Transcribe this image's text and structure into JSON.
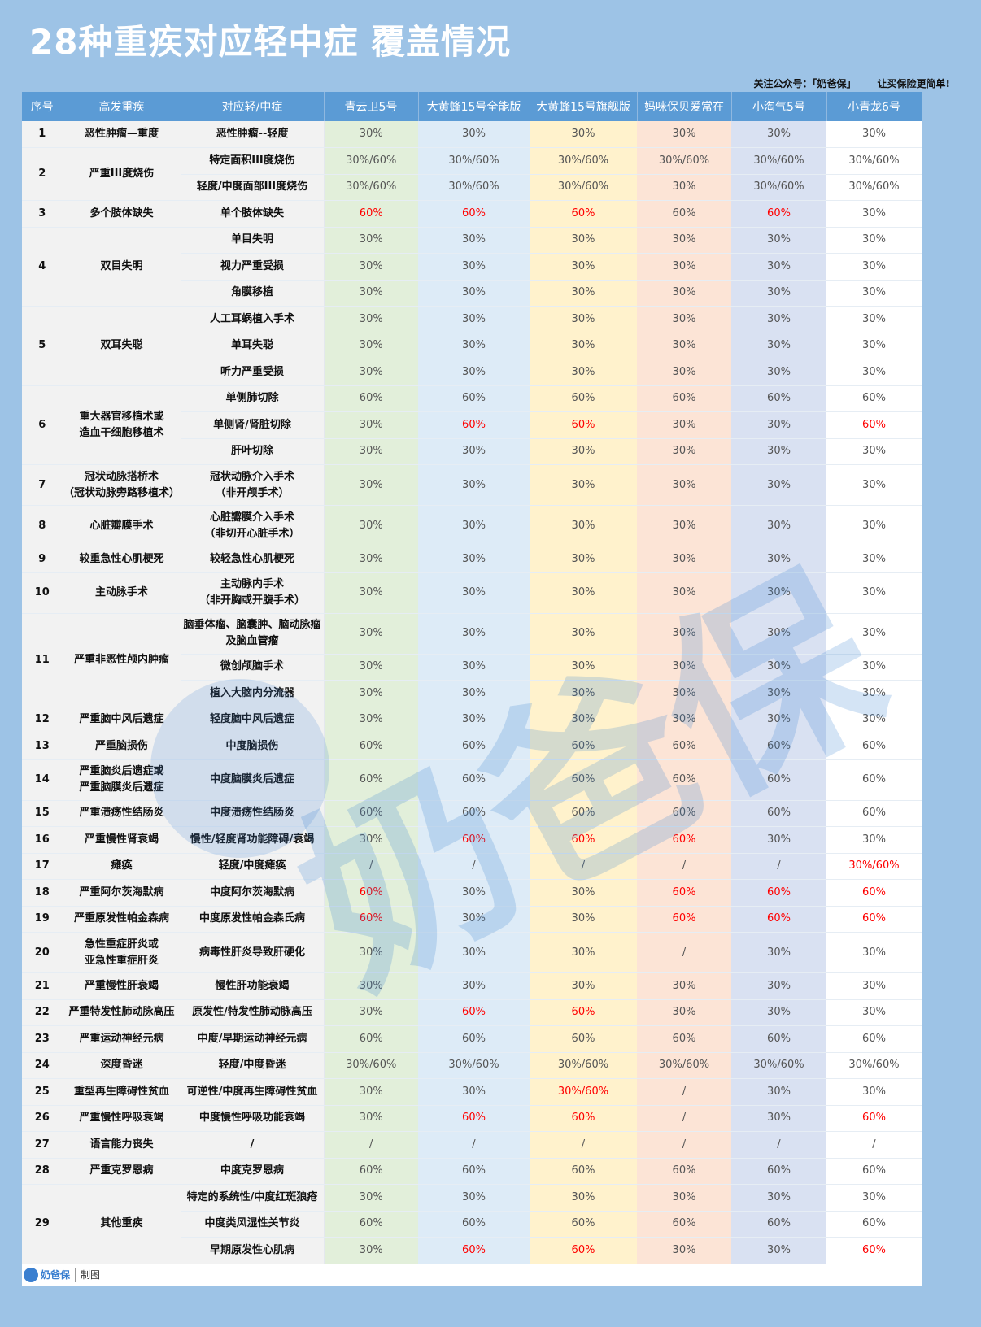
{
  "title": "28种重疾对应轻中症 覆盖情况",
  "slogan": {
    "follow": "关注公众号：「奶爸保」",
    "tagline": "让买保险更简单!"
  },
  "headers": [
    "序号",
    "高发重疾",
    "对应轻/中症",
    "青云卫5号",
    "大黄蜂15号全能版",
    "大黄蜂15号旗舰版",
    "妈咪保贝爱常在",
    "小淘气5号",
    "小青龙6号"
  ],
  "column_colors": [
    "#e2efda",
    "#ddebf7",
    "#fff2cc",
    "#fce4d6",
    "#d9e1f2",
    "#ffffff"
  ],
  "highlight_color": "#ff0000",
  "groups": [
    {
      "no": "1",
      "disease": "恶性肿瘤—重度",
      "subs": [
        {
          "mild": "恶性肿瘤--轻度",
          "values": [
            "30%",
            "30%",
            "30%",
            "30%",
            "30%",
            "30%"
          ],
          "red": []
        }
      ]
    },
    {
      "no": "2",
      "disease": "严重III度烧伤",
      "subs": [
        {
          "mild": "特定面积III度烧伤",
          "values": [
            "30%/60%",
            "30%/60%",
            "30%/60%",
            "30%/60%",
            "30%/60%",
            "30%/60%"
          ],
          "red": []
        },
        {
          "mild": "轻度/中度面部III度烧伤",
          "values": [
            "30%/60%",
            "30%/60%",
            "30%/60%",
            "30%",
            "30%/60%",
            "30%/60%"
          ],
          "red": []
        }
      ]
    },
    {
      "no": "3",
      "disease": "多个肢体缺失",
      "subs": [
        {
          "mild": "单个肢体缺失",
          "values": [
            "60%",
            "60%",
            "60%",
            "60%",
            "60%",
            "30%"
          ],
          "red": [
            0,
            1,
            2,
            4
          ]
        }
      ]
    },
    {
      "no": "4",
      "disease": "双目失明",
      "subs": [
        {
          "mild": "单目失明",
          "values": [
            "30%",
            "30%",
            "30%",
            "30%",
            "30%",
            "30%"
          ],
          "red": []
        },
        {
          "mild": "视力严重受损",
          "values": [
            "30%",
            "30%",
            "30%",
            "30%",
            "30%",
            "30%"
          ],
          "red": []
        },
        {
          "mild": "角膜移植",
          "values": [
            "30%",
            "30%",
            "30%",
            "30%",
            "30%",
            "30%"
          ],
          "red": []
        }
      ]
    },
    {
      "no": "5",
      "disease": "双耳失聪",
      "subs": [
        {
          "mild": "人工耳蜗植入手术",
          "values": [
            "30%",
            "30%",
            "30%",
            "30%",
            "30%",
            "30%"
          ],
          "red": []
        },
        {
          "mild": "单耳失聪",
          "values": [
            "30%",
            "30%",
            "30%",
            "30%",
            "30%",
            "30%"
          ],
          "red": []
        },
        {
          "mild": "听力严重受损",
          "values": [
            "30%",
            "30%",
            "30%",
            "30%",
            "30%",
            "30%"
          ],
          "red": []
        }
      ]
    },
    {
      "no": "6",
      "disease": "重大器官移植术或\n造血干细胞移植术",
      "subs": [
        {
          "mild": "单侧肺切除",
          "values": [
            "60%",
            "60%",
            "60%",
            "60%",
            "60%",
            "60%"
          ],
          "red": []
        },
        {
          "mild": "单侧肾/肾脏切除",
          "values": [
            "30%",
            "60%",
            "60%",
            "30%",
            "30%",
            "60%"
          ],
          "red": [
            1,
            2,
            5
          ]
        },
        {
          "mild": "肝叶切除",
          "values": [
            "30%",
            "30%",
            "30%",
            "30%",
            "30%",
            "30%"
          ],
          "red": []
        }
      ]
    },
    {
      "no": "7",
      "disease": "冠状动脉搭桥术\n（冠状动脉旁路移植术）",
      "subs": [
        {
          "mild": "冠状动脉介入手术\n（非开颅手术）",
          "values": [
            "30%",
            "30%",
            "30%",
            "30%",
            "30%",
            "30%"
          ],
          "red": []
        }
      ]
    },
    {
      "no": "8",
      "disease": "心脏瓣膜手术",
      "subs": [
        {
          "mild": "心脏瓣膜介入手术\n（非切开心脏手术）",
          "values": [
            "30%",
            "30%",
            "30%",
            "30%",
            "30%",
            "30%"
          ],
          "red": []
        }
      ]
    },
    {
      "no": "9",
      "disease": "较重急性心肌梗死",
      "subs": [
        {
          "mild": "较轻急性心肌梗死",
          "values": [
            "30%",
            "30%",
            "30%",
            "30%",
            "30%",
            "30%"
          ],
          "red": []
        }
      ]
    },
    {
      "no": "10",
      "disease": "主动脉手术",
      "subs": [
        {
          "mild": "主动脉内手术\n（非开胸或开腹手术）",
          "values": [
            "30%",
            "30%",
            "30%",
            "30%",
            "30%",
            "30%"
          ],
          "red": []
        }
      ]
    },
    {
      "no": "11",
      "disease": "严重非恶性颅内肿瘤",
      "subs": [
        {
          "mild": "脑垂体瘤、脑囊肿、脑动脉瘤\n及脑血管瘤",
          "values": [
            "30%",
            "30%",
            "30%",
            "30%",
            "30%",
            "30%"
          ],
          "red": []
        },
        {
          "mild": "微创颅脑手术",
          "values": [
            "30%",
            "30%",
            "30%",
            "30%",
            "30%",
            "30%"
          ],
          "red": []
        },
        {
          "mild": "植入大脑内分流器",
          "values": [
            "30%",
            "30%",
            "30%",
            "30%",
            "30%",
            "30%"
          ],
          "red": []
        }
      ]
    },
    {
      "no": "12",
      "disease": "严重脑中风后遗症",
      "subs": [
        {
          "mild": "轻度脑中风后遗症",
          "values": [
            "30%",
            "30%",
            "30%",
            "30%",
            "30%",
            "30%"
          ],
          "red": []
        }
      ]
    },
    {
      "no": "13",
      "disease": "严重脑损伤",
      "subs": [
        {
          "mild": "中度脑损伤",
          "values": [
            "60%",
            "60%",
            "60%",
            "60%",
            "60%",
            "60%"
          ],
          "red": []
        }
      ]
    },
    {
      "no": "14",
      "disease": "严重脑炎后遗症或\n严重脑膜炎后遗症",
      "subs": [
        {
          "mild": "中度脑膜炎后遗症",
          "values": [
            "60%",
            "60%",
            "60%",
            "60%",
            "60%",
            "60%"
          ],
          "red": []
        }
      ]
    },
    {
      "no": "15",
      "disease": "严重溃疡性结肠炎",
      "subs": [
        {
          "mild": "中度溃疡性结肠炎",
          "values": [
            "60%",
            "60%",
            "60%",
            "60%",
            "60%",
            "60%"
          ],
          "red": []
        }
      ]
    },
    {
      "no": "16",
      "disease": "严重慢性肾衰竭",
      "subs": [
        {
          "mild": "慢性/轻度肾功能障碍/衰竭",
          "values": [
            "30%",
            "60%",
            "60%",
            "60%",
            "30%",
            "30%"
          ],
          "red": [
            1,
            2,
            3
          ]
        }
      ]
    },
    {
      "no": "17",
      "disease": "瘫痪",
      "subs": [
        {
          "mild": "轻度/中度瘫痪",
          "values": [
            "/",
            "/",
            "/",
            "/",
            "/",
            "30%/60%"
          ],
          "red": [
            5
          ]
        }
      ]
    },
    {
      "no": "18",
      "disease": "严重阿尔茨海默病",
      "subs": [
        {
          "mild": "中度阿尔茨海默病",
          "values": [
            "60%",
            "30%",
            "30%",
            "60%",
            "60%",
            "60%"
          ],
          "red": [
            0,
            3,
            4,
            5
          ]
        }
      ]
    },
    {
      "no": "19",
      "disease": "严重原发性帕金森病",
      "subs": [
        {
          "mild": "中度原发性帕金森氏病",
          "values": [
            "60%",
            "30%",
            "30%",
            "60%",
            "60%",
            "60%"
          ],
          "red": [
            0,
            3,
            4,
            5
          ]
        }
      ]
    },
    {
      "no": "20",
      "disease": "急性重症肝炎或\n亚急性重症肝炎",
      "subs": [
        {
          "mild": "病毒性肝炎导致肝硬化",
          "values": [
            "30%",
            "30%",
            "30%",
            "/",
            "30%",
            "30%"
          ],
          "red": []
        }
      ]
    },
    {
      "no": "21",
      "disease": "严重慢性肝衰竭",
      "subs": [
        {
          "mild": "慢性肝功能衰竭",
          "values": [
            "30%",
            "30%",
            "30%",
            "30%",
            "30%",
            "30%"
          ],
          "red": []
        }
      ]
    },
    {
      "no": "22",
      "disease": "严重特发性肺动脉高压",
      "subs": [
        {
          "mild": "原发性/特发性肺动脉高压",
          "values": [
            "30%",
            "60%",
            "60%",
            "30%",
            "30%",
            "30%"
          ],
          "red": [
            1,
            2
          ]
        }
      ]
    },
    {
      "no": "23",
      "disease": "严重运动神经元病",
      "subs": [
        {
          "mild": "中度/早期运动神经元病",
          "values": [
            "60%",
            "60%",
            "60%",
            "60%",
            "60%",
            "60%"
          ],
          "red": []
        }
      ]
    },
    {
      "no": "24",
      "disease": "深度昏迷",
      "subs": [
        {
          "mild": "轻度/中度昏迷",
          "values": [
            "30%/60%",
            "30%/60%",
            "30%/60%",
            "30%/60%",
            "30%/60%",
            "30%/60%"
          ],
          "red": []
        }
      ]
    },
    {
      "no": "25",
      "disease": "重型再生障碍性贫血",
      "subs": [
        {
          "mild": "可逆性/中度再生障碍性贫血",
          "values": [
            "30%",
            "30%",
            "30%/60%",
            "/",
            "30%",
            "30%"
          ],
          "red": [
            2
          ]
        }
      ]
    },
    {
      "no": "26",
      "disease": "严重慢性呼吸衰竭",
      "subs": [
        {
          "mild": "中度慢性呼吸功能衰竭",
          "values": [
            "30%",
            "60%",
            "60%",
            "/",
            "30%",
            "60%"
          ],
          "red": [
            1,
            2,
            5
          ]
        }
      ]
    },
    {
      "no": "27",
      "disease": "语言能力丧失",
      "subs": [
        {
          "mild": "/",
          "values": [
            "/",
            "/",
            "/",
            "/",
            "/",
            "/"
          ],
          "red": []
        }
      ]
    },
    {
      "no": "28",
      "disease": "严重克罗恩病",
      "subs": [
        {
          "mild": "中度克罗恩病",
          "values": [
            "60%",
            "60%",
            "60%",
            "60%",
            "60%",
            "60%"
          ],
          "red": []
        }
      ]
    },
    {
      "no": "29",
      "disease": "其他重疾",
      "subs": [
        {
          "mild": "特定的系统性/中度红斑狼疮",
          "values": [
            "30%",
            "30%",
            "30%",
            "30%",
            "30%",
            "30%"
          ],
          "red": []
        },
        {
          "mild": "中度类风湿性关节炎",
          "values": [
            "60%",
            "60%",
            "60%",
            "60%",
            "60%",
            "60%"
          ],
          "red": []
        },
        {
          "mild": "早期原发性心肌病",
          "values": [
            "30%",
            "60%",
            "60%",
            "30%",
            "30%",
            "60%"
          ],
          "red": [
            1,
            2,
            5
          ]
        }
      ]
    }
  ],
  "footer": {
    "logo": "奶爸保",
    "credit": "制图"
  },
  "watermark": "奶爸保"
}
